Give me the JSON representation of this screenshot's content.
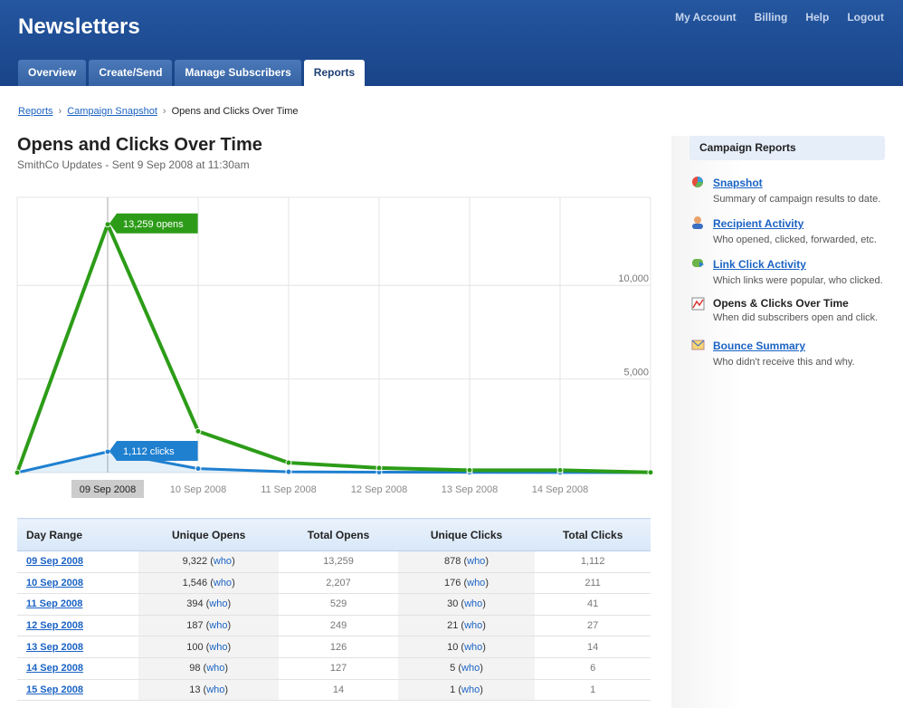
{
  "header": {
    "title": "Newsletters",
    "links": [
      "My Account",
      "Billing",
      "Help",
      "Logout"
    ],
    "tabs": [
      "Overview",
      "Create/Send",
      "Manage Subscribers",
      "Reports"
    ],
    "active_tab": 3
  },
  "breadcrumb": [
    "Reports",
    "Campaign Snapshot",
    "Opens and Clicks Over Time"
  ],
  "page": {
    "title": "Opens and Clicks Over Time",
    "subtitle": "SmithCo Updates - Sent 9 Sep 2008 at 11:30am"
  },
  "chart_data": {
    "type": "line",
    "categories": [
      null,
      "09 Sep 2008",
      "10 Sep 2008",
      "11 Sep 2008",
      "12 Sep 2008",
      "13 Sep 2008",
      "14 Sep 2008",
      null
    ],
    "series": [
      {
        "name": "opens",
        "color": "#2c9c18",
        "values": [
          0,
          13259,
          2207,
          529,
          249,
          126,
          127,
          14
        ],
        "value_labels": [
          null,
          "13,259 opens",
          null,
          null,
          null,
          null,
          null,
          null
        ]
      },
      {
        "name": "clicks",
        "color": "#1f80d0",
        "values": [
          0,
          1112,
          211,
          41,
          27,
          14,
          6,
          1
        ],
        "value_labels": [
          null,
          "1,112 clicks",
          null,
          null,
          null,
          null,
          null,
          null
        ]
      }
    ],
    "ylim": [
      0,
      14700
    ],
    "yticks": [
      {
        "value": 5000,
        "label": "5,000"
      },
      {
        "value": 10000,
        "label": "10,000"
      }
    ],
    "grid": true
  },
  "table": {
    "columns": [
      "Day Range",
      "Unique Opens",
      "Total Opens",
      "Unique Clicks",
      "Total Clicks"
    ],
    "who": "who",
    "rows": [
      [
        "09 Sep 2008",
        "9,322",
        "13,259",
        "878",
        "1,112"
      ],
      [
        "10 Sep 2008",
        "1,546",
        "2,207",
        "176",
        "211"
      ],
      [
        "11 Sep 2008",
        "394",
        "529",
        "30",
        "41"
      ],
      [
        "12 Sep 2008",
        "187",
        "249",
        "21",
        "27"
      ],
      [
        "13 Sep 2008",
        "100",
        "126",
        "10",
        "14"
      ],
      [
        "14 Sep 2008",
        "98",
        "127",
        "5",
        "6"
      ],
      [
        "15 Sep 2008",
        "13",
        "14",
        "1",
        "1"
      ]
    ]
  },
  "sidebar": {
    "title": "Campaign Reports",
    "items": [
      {
        "label": "Snapshot",
        "description": "Summary of campaign results to date.",
        "link": true
      },
      {
        "label": "Recipient Activity",
        "description": "Who opened, clicked, forwarded, etc.",
        "link": true
      },
      {
        "label": "Link Click Activity",
        "description": "Which links were popular, who clicked.",
        "link": true
      },
      {
        "label": "Opens & Clicks Over Time",
        "description": "When did subscribers open and click.",
        "link": false
      },
      {
        "label": "Bounce Summary",
        "description": "Who didn't receive this and why.",
        "link": true
      }
    ]
  }
}
